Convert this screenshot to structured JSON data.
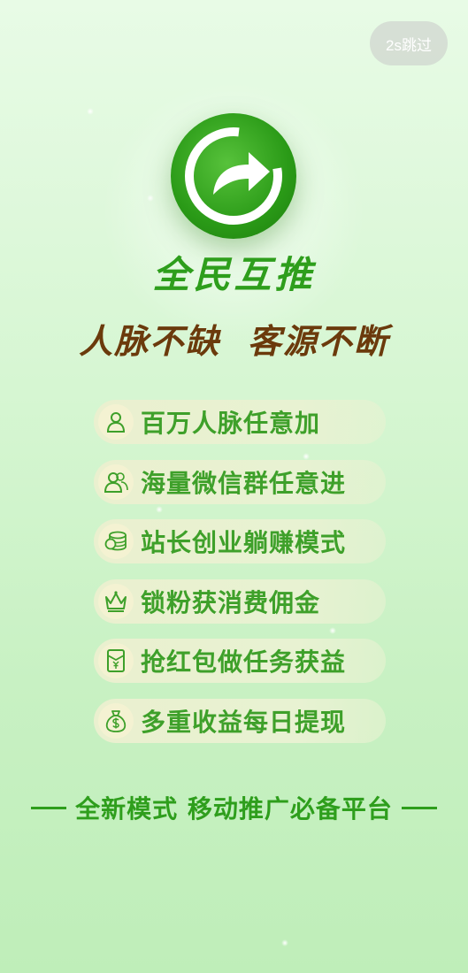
{
  "skip": {
    "label": "2s跳过"
  },
  "logo": {
    "icon": "share-arrow-icon"
  },
  "app": {
    "name": "全民互推"
  },
  "slogan": "人脉不缺  客源不断",
  "features": [
    {
      "icon": "person-icon",
      "label": "百万人脉任意加"
    },
    {
      "icon": "group-icon",
      "label": "海量微信群任意进"
    },
    {
      "icon": "coins-icon",
      "label": "站长创业躺赚模式"
    },
    {
      "icon": "crown-icon",
      "label": "锁粉获消费佣金"
    },
    {
      "icon": "red-packet-icon",
      "label": "抢红包做任务获益"
    },
    {
      "icon": "money-bag-icon",
      "label": "多重收益每日提现"
    }
  ],
  "tagline": "全新模式 移动推广必备平台",
  "colors": {
    "primary_green": "#2e9e1c",
    "brown": "#6b3a0c",
    "feature_text": "#3ea02a",
    "feature_bg": "#eaf0cf"
  }
}
